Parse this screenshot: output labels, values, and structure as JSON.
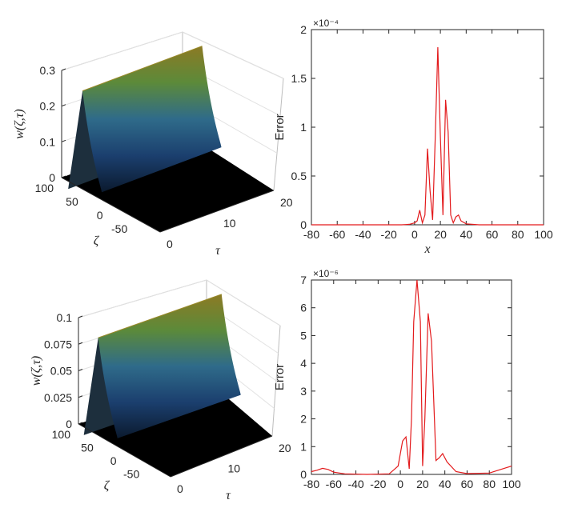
{
  "chart_data": [
    {
      "panel": "top-left",
      "type": "surface",
      "zlabel": "w(ζ,τ)",
      "xlabel": "τ",
      "ylabel": "ζ",
      "z_ticks": [
        "0",
        "0.1",
        "0.2",
        "0.3"
      ],
      "z_range": [
        0,
        0.3
      ],
      "tau_ticks": [
        "0",
        "10",
        "20"
      ],
      "tau_range": [
        0,
        20
      ],
      "zeta_ticks": [
        "100",
        "50",
        "0",
        "-50"
      ],
      "zeta_range": [
        -100,
        100
      ],
      "peak": 0.27,
      "colors": [
        "#0b1a2e",
        "#1b3f6e",
        "#2f6b8a",
        "#5c8a3a",
        "#8c7a24"
      ]
    },
    {
      "panel": "top-right",
      "type": "line",
      "ylabel": "Error",
      "xlabel": "x",
      "exponent": "×10⁻⁴",
      "x_ticks": [
        "-80",
        "-60",
        "-40",
        "-20",
        "0",
        "20",
        "40",
        "60",
        "80",
        "100"
      ],
      "y_ticks": [
        "0",
        "0.5",
        "1",
        "1.5",
        "2"
      ],
      "xlim": [
        -80,
        100
      ],
      "ylim": [
        0,
        2
      ],
      "line_color": "#e31a1c",
      "x": [
        -80,
        -10,
        -4,
        0,
        2,
        4,
        6,
        8,
        10,
        12,
        14,
        16,
        18,
        20,
        22,
        24,
        26,
        28,
        30,
        32,
        34,
        36,
        40,
        50,
        100
      ],
      "y": [
        0,
        0,
        0.005,
        0.02,
        0.04,
        0.15,
        0.02,
        0.1,
        0.78,
        0.35,
        0.05,
        0.9,
        1.82,
        0.9,
        0.1,
        1.28,
        0.95,
        0.1,
        0.02,
        0.08,
        0.1,
        0.04,
        0.01,
        0,
        0
      ]
    },
    {
      "panel": "bottom-left",
      "type": "surface",
      "zlabel": "w(ζ,τ)",
      "xlabel": "τ",
      "ylabel": "ζ",
      "z_ticks": [
        "0",
        "0.025",
        "0.05",
        "0.075",
        "0.1"
      ],
      "z_range": [
        0,
        0.1
      ],
      "tau_ticks": [
        "0",
        "10",
        "20"
      ],
      "tau_range": [
        0,
        20
      ],
      "zeta_ticks": [
        "100",
        "50",
        "0",
        "-50"
      ],
      "zeta_range": [
        -100,
        100
      ],
      "peak": 0.09,
      "colors": [
        "#0b1a2e",
        "#1b3f6e",
        "#2f6b8a",
        "#5c8a3a",
        "#8c7a24"
      ]
    },
    {
      "panel": "bottom-right",
      "type": "line",
      "ylabel": "Error",
      "xlabel": "",
      "exponent": "×10⁻⁶",
      "x_ticks": [
        "-80",
        "-60",
        "-40",
        "-20",
        "0",
        "20",
        "40",
        "60",
        "80",
        "100"
      ],
      "y_ticks": [
        "0",
        "1",
        "2",
        "3",
        "4",
        "5",
        "6",
        "7"
      ],
      "xlim": [
        -80,
        100
      ],
      "ylim": [
        0,
        7
      ],
      "line_color": "#e31a1c",
      "x": [
        -80,
        -75,
        -70,
        -65,
        -60,
        -50,
        -30,
        -10,
        -2,
        2,
        5,
        8,
        10,
        12,
        15,
        18,
        20,
        22,
        25,
        28,
        32,
        35,
        38,
        42,
        50,
        60,
        80,
        100
      ],
      "y": [
        0.1,
        0.15,
        0.22,
        0.18,
        0.08,
        0.02,
        0,
        0.02,
        0.3,
        1.2,
        1.35,
        0.2,
        2.0,
        5.5,
        7.0,
        5.5,
        0.3,
        2.0,
        5.8,
        4.8,
        0.5,
        0.6,
        0.75,
        0.45,
        0.1,
        0.03,
        0.05,
        0.3
      ]
    }
  ]
}
